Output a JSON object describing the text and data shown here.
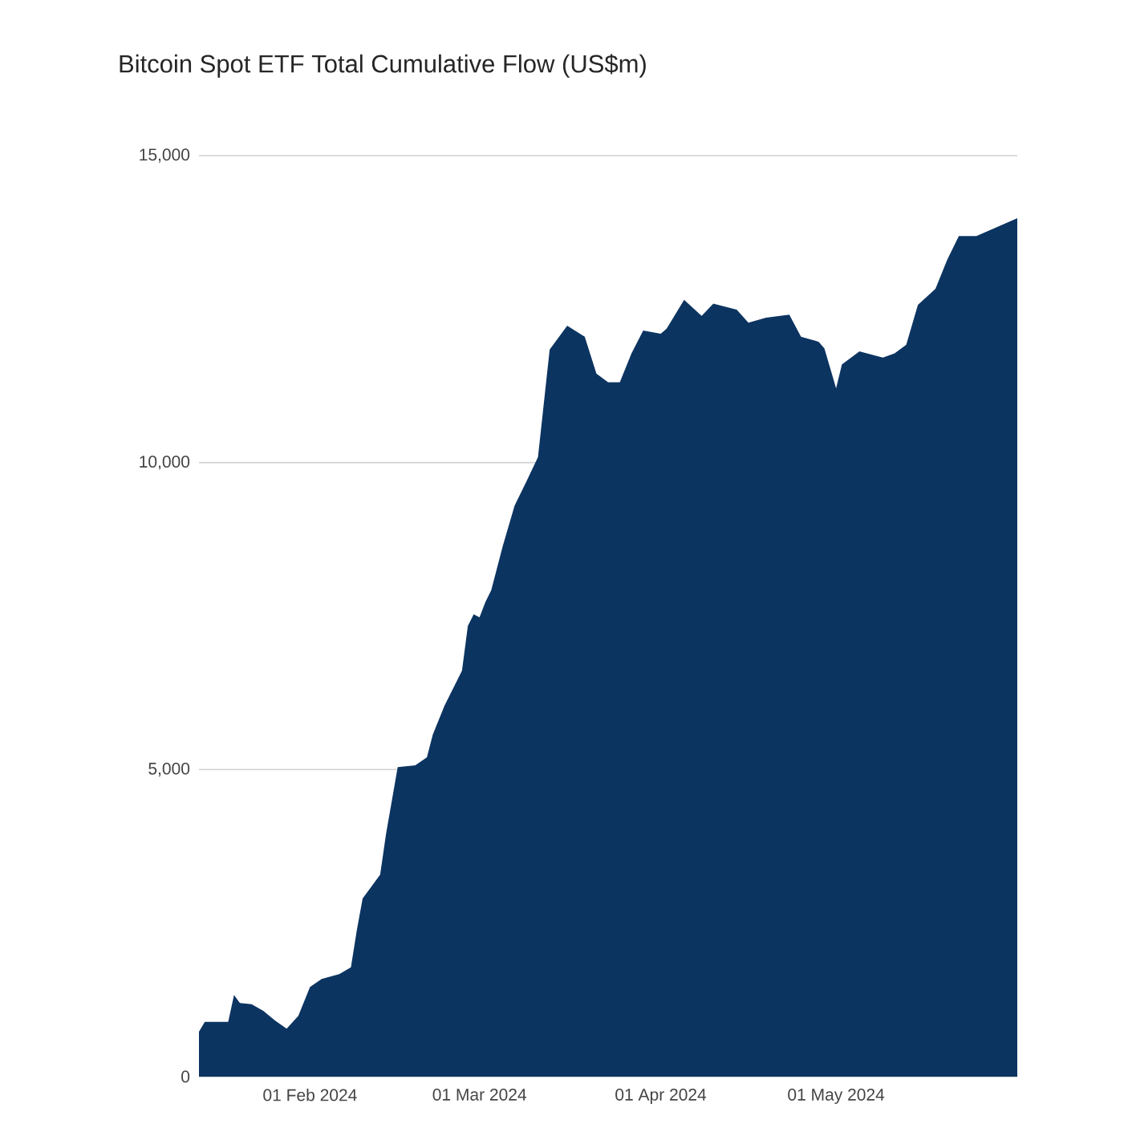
{
  "chart_data": {
    "type": "area",
    "title": "Bitcoin Spot ETF Total Cumulative Flow (US$m)",
    "x": [
      "2024-01-13",
      "2024-01-14",
      "2024-01-18",
      "2024-01-19",
      "2024-01-20",
      "2024-01-22",
      "2024-01-24",
      "2024-01-26",
      "2024-01-28",
      "2024-01-30",
      "2024-02-01",
      "2024-02-03",
      "2024-02-06",
      "2024-02-08",
      "2024-02-09",
      "2024-02-10",
      "2024-02-13",
      "2024-02-14",
      "2024-02-16",
      "2024-02-19",
      "2024-02-21",
      "2024-02-22",
      "2024-02-24",
      "2024-02-27",
      "2024-02-28",
      "2024-02-29",
      "2024-03-01",
      "2024-03-02",
      "2024-03-03",
      "2024-03-05",
      "2024-03-07",
      "2024-03-09",
      "2024-03-11",
      "2024-03-13",
      "2024-03-16",
      "2024-03-19",
      "2024-03-21",
      "2024-03-23",
      "2024-03-25",
      "2024-03-27",
      "2024-03-29",
      "2024-04-01",
      "2024-04-02",
      "2024-04-05",
      "2024-04-08",
      "2024-04-10",
      "2024-04-14",
      "2024-04-16",
      "2024-04-19",
      "2024-04-23",
      "2024-04-25",
      "2024-04-28",
      "2024-04-29",
      "2024-05-01",
      "2024-05-02",
      "2024-05-05",
      "2024-05-09",
      "2024-05-11",
      "2024-05-13",
      "2024-05-15",
      "2024-05-18",
      "2024-05-20",
      "2024-05-22",
      "2024-05-25",
      "2024-06-01"
    ],
    "values": [
      730,
      890,
      890,
      1330,
      1200,
      1180,
      1070,
      915,
      780,
      990,
      1460,
      1590,
      1670,
      1780,
      2380,
      2900,
      3290,
      3950,
      5040,
      5070,
      5200,
      5570,
      6040,
      6610,
      7340,
      7530,
      7480,
      7730,
      7920,
      8650,
      9300,
      9690,
      10090,
      11840,
      12230,
      12050,
      11450,
      11310,
      11310,
      11780,
      12150,
      12100,
      12180,
      12650,
      12390,
      12590,
      12490,
      12280,
      12360,
      12410,
      12050,
      11970,
      11860,
      11210,
      11600,
      11810,
      11710,
      11780,
      11920,
      12570,
      12830,
      13300,
      13690,
      13690,
      13980
    ],
    "color": "#0c3461",
    "xlim": [
      "2024-01-13",
      "2024-06-01"
    ],
    "xticks": [
      {
        "value": "2024-02-01",
        "label": "01 Feb 2024"
      },
      {
        "value": "2024-03-01",
        "label": "01 Mar 2024"
      },
      {
        "value": "2024-04-01",
        "label": "01 Apr 2024"
      },
      {
        "value": "2024-05-01",
        "label": "01 May 2024"
      }
    ],
    "ylim": [
      0,
      15000
    ],
    "yticks": [
      0,
      {
        "value": 5000,
        "label": "5,000"
      },
      {
        "value": 10000,
        "label": "10,000"
      },
      {
        "value": 15000,
        "label": "15,000"
      }
    ],
    "grid": "y"
  }
}
